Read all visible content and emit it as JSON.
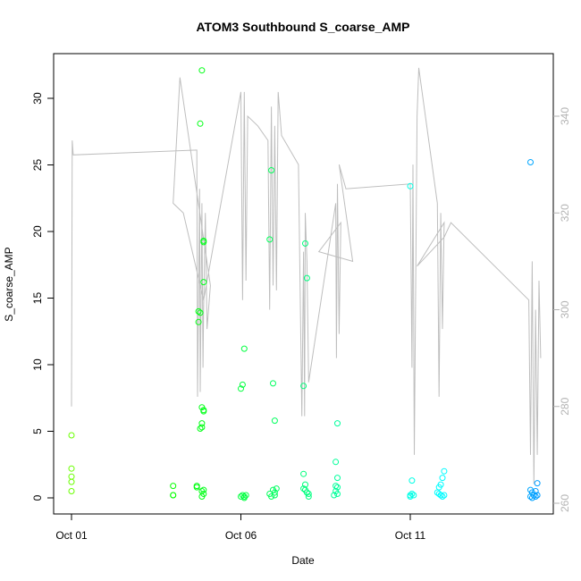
{
  "chart_data": {
    "type": "scatter",
    "title": "ATOM3 Southbound S_coarse_AMP",
    "xlabel": "Date",
    "ylabel": "S_coarse_AMP",
    "x_ticks": [
      "Oct 01",
      "Oct 06",
      "Oct 11"
    ],
    "y_ticks": [
      "0",
      "5",
      "10",
      "15",
      "20",
      "25",
      "30"
    ],
    "y2_ticks": [
      "260",
      "280",
      "300",
      "320",
      "340"
    ],
    "xlim_days": [
      0.0,
      14.6
    ],
    "ylim": [
      -1.2,
      33.3
    ],
    "y2lim": [
      256.5,
      351.5
    ],
    "colors": {
      "line": "#bebebe",
      "axis": "#000000",
      "right_axis": "#b3b3b3"
    },
    "points": [
      {
        "x": 0.0,
        "y": 4.7
      },
      {
        "x": 0.0,
        "y": 2.2
      },
      {
        "x": 0.0,
        "y": 1.6
      },
      {
        "x": 0.0,
        "y": 1.2
      },
      {
        "x": 0.0,
        "y": 0.5
      },
      {
        "x": 3.0,
        "y": 0.9
      },
      {
        "x": 3.0,
        "y": 0.2
      },
      {
        "x": 3.0,
        "y": 0.2
      },
      {
        "x": 3.7,
        "y": 0.9
      },
      {
        "x": 3.7,
        "y": 0.8
      },
      {
        "x": 3.75,
        "y": 14.0
      },
      {
        "x": 3.75,
        "y": 13.2
      },
      {
        "x": 3.8,
        "y": 28.1
      },
      {
        "x": 3.8,
        "y": 13.9
      },
      {
        "x": 3.85,
        "y": 32.1
      },
      {
        "x": 3.85,
        "y": 6.8
      },
      {
        "x": 3.85,
        "y": 5.6
      },
      {
        "x": 3.85,
        "y": 5.3
      },
      {
        "x": 3.8,
        "y": 5.2
      },
      {
        "x": 3.9,
        "y": 19.2
      },
      {
        "x": 3.9,
        "y": 19.3
      },
      {
        "x": 3.9,
        "y": 16.2
      },
      {
        "x": 3.9,
        "y": 6.6
      },
      {
        "x": 3.9,
        "y": 6.5
      },
      {
        "x": 3.85,
        "y": 0.5
      },
      {
        "x": 3.9,
        "y": 0.6
      },
      {
        "x": 3.9,
        "y": 0.3
      },
      {
        "x": 3.85,
        "y": 0.1
      },
      {
        "x": 5.0,
        "y": 8.2
      },
      {
        "x": 5.05,
        "y": 8.5
      },
      {
        "x": 5.1,
        "y": 11.2
      },
      {
        "x": 5.0,
        "y": 0.1
      },
      {
        "x": 5.05,
        "y": 0.2
      },
      {
        "x": 5.1,
        "y": 0.1
      },
      {
        "x": 5.15,
        "y": 0.2
      },
      {
        "x": 5.1,
        "y": 0.0
      },
      {
        "x": 5.85,
        "y": 19.4
      },
      {
        "x": 5.9,
        "y": 24.6
      },
      {
        "x": 5.95,
        "y": 8.6
      },
      {
        "x": 6.0,
        "y": 5.8
      },
      {
        "x": 5.85,
        "y": 0.3
      },
      {
        "x": 5.9,
        "y": 0.1
      },
      {
        "x": 5.95,
        "y": 0.6
      },
      {
        "x": 6.0,
        "y": 0.2
      },
      {
        "x": 6.0,
        "y": 0.4
      },
      {
        "x": 6.05,
        "y": 0.7
      },
      {
        "x": 6.85,
        "y": 8.4
      },
      {
        "x": 6.9,
        "y": 19.1
      },
      {
        "x": 6.95,
        "y": 16.5
      },
      {
        "x": 6.85,
        "y": 1.8
      },
      {
        "x": 6.9,
        "y": 1.0
      },
      {
        "x": 6.85,
        "y": 0.7
      },
      {
        "x": 6.9,
        "y": 0.6
      },
      {
        "x": 6.95,
        "y": 0.4
      },
      {
        "x": 7.0,
        "y": 0.3
      },
      {
        "x": 7.0,
        "y": 0.1
      },
      {
        "x": 7.8,
        "y": 2.7
      },
      {
        "x": 7.85,
        "y": 5.6
      },
      {
        "x": 7.85,
        "y": 1.5
      },
      {
        "x": 7.8,
        "y": 0.9
      },
      {
        "x": 7.85,
        "y": 0.8
      },
      {
        "x": 7.8,
        "y": 0.5
      },
      {
        "x": 7.85,
        "y": 0.3
      },
      {
        "x": 7.75,
        "y": 0.2
      },
      {
        "x": 10.0,
        "y": 23.4
      },
      {
        "x": 10.05,
        "y": 1.3
      },
      {
        "x": 10.0,
        "y": 0.2
      },
      {
        "x": 10.05,
        "y": 0.3
      },
      {
        "x": 10.0,
        "y": 0.1
      },
      {
        "x": 10.1,
        "y": 0.2
      },
      {
        "x": 10.8,
        "y": 0.4
      },
      {
        "x": 10.85,
        "y": 0.3
      },
      {
        "x": 10.9,
        "y": 0.2
      },
      {
        "x": 10.95,
        "y": 0.1
      },
      {
        "x": 11.0,
        "y": 0.2
      },
      {
        "x": 10.85,
        "y": 0.8
      },
      {
        "x": 10.9,
        "y": 1.0
      },
      {
        "x": 10.95,
        "y": 1.5
      },
      {
        "x": 11.0,
        "y": 2.0
      },
      {
        "x": 13.55,
        "y": 25.2
      },
      {
        "x": 13.55,
        "y": 0.6
      },
      {
        "x": 13.6,
        "y": 0.4
      },
      {
        "x": 13.65,
        "y": 0.2
      },
      {
        "x": 13.7,
        "y": 0.5
      },
      {
        "x": 13.75,
        "y": 1.1
      },
      {
        "x": 13.55,
        "y": 0.1
      },
      {
        "x": 13.6,
        "y": 0.0
      },
      {
        "x": 13.7,
        "y": 0.1
      },
      {
        "x": 13.75,
        "y": 0.2
      }
    ]
  }
}
